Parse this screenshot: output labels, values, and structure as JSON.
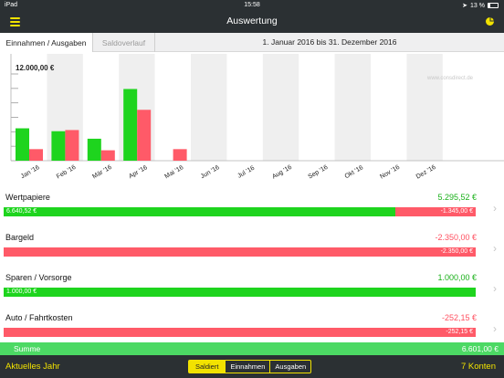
{
  "status_bar": {
    "left": "iPad",
    "time": "15:58",
    "battery": "13 %"
  },
  "nav": {
    "title": "Auswertung"
  },
  "tabs": {
    "active": "Einnahmen / Ausgaben",
    "inactive": "Saldoverlauf"
  },
  "date_range": "1. Januar 2016 bis 31. Dezember 2016",
  "watermark": "www.consdirect.de",
  "chart_data": {
    "type": "bar",
    "categories": [
      "Jan '16",
      "Feb '16",
      "Mär '16",
      "Apr '16",
      "Mai '16",
      "Jun '16",
      "Jul '16",
      "Aug '16",
      "Sep '16",
      "Okt '16",
      "Nov '16",
      "Dez '16"
    ],
    "series": [
      {
        "values": [
          5600,
          5100,
          3800,
          12400,
          0,
          0,
          0,
          0,
          0,
          0,
          0,
          0
        ]
      },
      {
        "values": [
          2000,
          5300,
          1800,
          8800,
          2000,
          0,
          0,
          0,
          0,
          0,
          0,
          0
        ]
      }
    ],
    "ymax_label": "12.000,00 €",
    "ylim": [
      0,
      15000
    ],
    "colors": {
      "income": "#1ed41e",
      "expense": "#ff5a68"
    },
    "grid": true
  },
  "rows": [
    {
      "name": "Wertpapiere",
      "total": "5.295,52 €",
      "total_color": "green",
      "segments": [
        {
          "label": "6.640,52 €",
          "color": "green",
          "share": 0.83
        },
        {
          "label": "-1.345,00 €",
          "color": "red",
          "share": 0.17
        }
      ]
    },
    {
      "name": "Bargeld",
      "total": "-2.350,00 €",
      "total_color": "red",
      "segments": [
        {
          "label": "-2.350,00 €",
          "color": "red",
          "share": 1.0
        }
      ]
    },
    {
      "name": "Sparen / Vorsorge",
      "total": "1.000,00 €",
      "total_color": "green",
      "segments": [
        {
          "label": "1.000,00 €",
          "color": "green",
          "share": 1.0
        }
      ]
    },
    {
      "name": "Auto / Fahrtkosten",
      "total": "-252,15 €",
      "total_color": "red",
      "segments": [
        {
          "label": "-252,15 €",
          "color": "red",
          "share": 1.0
        }
      ]
    }
  ],
  "summary": {
    "label": "Summe",
    "value": "6.601,00 €"
  },
  "toolbar": {
    "left": "Aktuelles Jahr",
    "right": "7 Konten",
    "segments": [
      "Saldiert",
      "Einnahmen",
      "Ausgaben"
    ],
    "selected": "Saldiert"
  }
}
